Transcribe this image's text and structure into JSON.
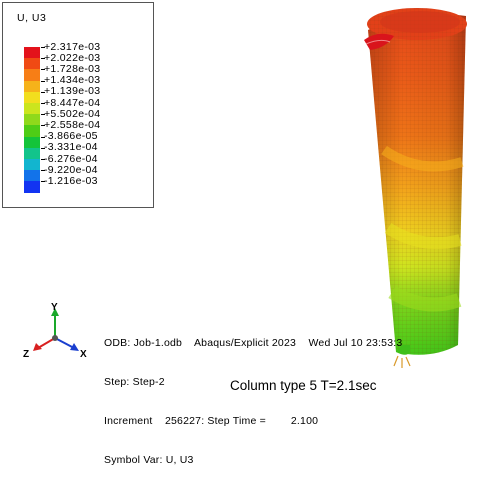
{
  "legend": {
    "title": "U, U3",
    "values": [
      "+2.317e-03",
      "+2.022e-03",
      "+1.728e-03",
      "+1.434e-03",
      "+1.139e-03",
      "+8.447e-04",
      "+5.502e-04",
      "+2.558e-04",
      "-3.866e-05",
      "-3.331e-04",
      "-6.276e-04",
      "-9.220e-04",
      "-1.216e-03"
    ],
    "colors": [
      "#e3121b",
      "#f04a14",
      "#f77e16",
      "#f6b21a",
      "#f2de1e",
      "#cbe51e",
      "#8fd91b",
      "#4ecd16",
      "#14c43a",
      "#12c48b",
      "#12b5cf",
      "#1273ea",
      "#1234f2"
    ]
  },
  "triad": {
    "y_label": "Y",
    "z_label": "Z",
    "x_label": "X"
  },
  "info": {
    "odb_line": "ODB: Job-1.odb    Abaqus/Explicit 2023    Wed Jul 10 23:53:3",
    "step_line": "Step: Step-2",
    "increment_line": "Increment    256227: Step Time =        2.100",
    "symbol_line": "Symbol Var: U, U3"
  },
  "caption": "Column type 5  T=2.1sec"
}
